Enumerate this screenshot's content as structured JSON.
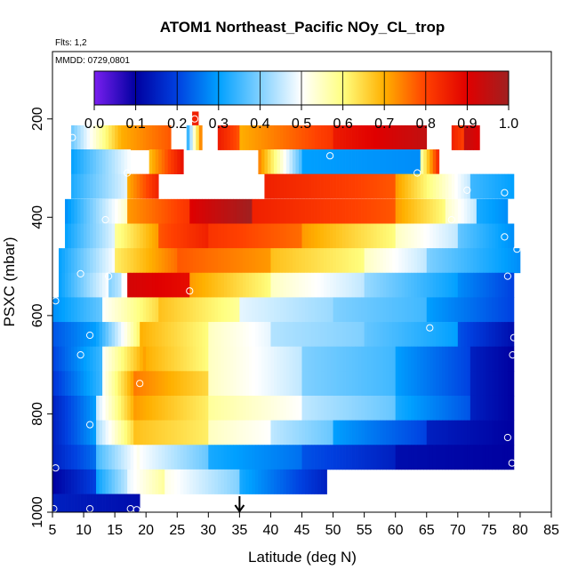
{
  "chart_data": {
    "type": "heatmap",
    "title": "ATOM1 Northeast_Pacific NOy_CL_trop",
    "annotations": [
      "Flts: 1,2",
      "MMDD: 0729,0801"
    ],
    "xlabel": "Latitude (deg N)",
    "ylabel": "PSXC (mbar)",
    "xlim": [
      5,
      85
    ],
    "ylim": [
      1000,
      100
    ],
    "x_ticks": [
      "5",
      "10",
      "15",
      "20",
      "25",
      "30",
      "35",
      "40",
      "45",
      "50",
      "55",
      "60",
      "65",
      "70",
      "75",
      "80",
      "85"
    ],
    "y_ticks": [
      "200",
      "400",
      "600",
      "800",
      "1000"
    ],
    "y_tick_values": [
      200,
      400,
      600,
      800,
      1000
    ],
    "colorbar": {
      "range": [
        0.0,
        1.0
      ],
      "ticks": [
        "0.0",
        "0.1",
        "0.2",
        "0.3",
        "0.4",
        "0.5",
        "0.6",
        "0.7",
        "0.8",
        "0.9",
        "1.0"
      ],
      "stops": [
        "#7a1ff0",
        "#0000a0",
        "#0040e0",
        "#00a0ff",
        "#80d0ff",
        "#ffffff",
        "#ffff80",
        "#ffb000",
        "#ff4000",
        "#e00000",
        "#a02020"
      ]
    },
    "marker": {
      "x": 35
    },
    "bands": [
      {
        "p": 210,
        "segments": [
          [
            27.4,
            28.4,
            0.85
          ]
        ]
      },
      {
        "p": 238,
        "segments": [
          [
            8,
            16,
            0.38,
            0.7
          ],
          [
            16,
            24,
            0.7,
            0.78
          ],
          [
            26.5,
            29,
            0.3,
            0.78
          ],
          [
            31.5,
            35,
            0.86,
            0.78
          ],
          [
            35,
            50,
            0.7,
            0.82
          ],
          [
            50,
            65,
            0.86,
            0.95
          ],
          [
            69,
            71,
            0.85,
            0.8
          ],
          [
            71,
            73.5,
            0.95,
            0.9
          ]
        ]
      },
      {
        "p": 287,
        "segments": [
          [
            8,
            17.5,
            0.3,
            0.5
          ],
          [
            20.5,
            26,
            0.68,
            0.88
          ],
          [
            38,
            45,
            0.75,
            0.35
          ],
          [
            45,
            64,
            0.3,
            0.28
          ],
          [
            64,
            67,
            0.55,
            0.85
          ]
        ]
      },
      {
        "p": 337,
        "segments": [
          [
            8,
            17,
            0.32,
            0.48
          ],
          [
            17,
            22,
            0.7,
            0.85
          ],
          [
            39,
            60,
            0.85,
            0.78
          ],
          [
            60,
            72,
            0.72,
            0.45
          ],
          [
            72,
            79,
            0.35,
            0.3
          ]
        ]
      },
      {
        "p": 388,
        "segments": [
          [
            7,
            17,
            0.28,
            0.55
          ],
          [
            17,
            27,
            0.72,
            0.82
          ],
          [
            27,
            37,
            0.9,
            1.0
          ],
          [
            37,
            60,
            0.85,
            0.78
          ],
          [
            60,
            68,
            0.72,
            0.6
          ],
          [
            68,
            73,
            0.55,
            0.45
          ],
          [
            73,
            78,
            0.32,
            0.28
          ]
        ]
      },
      {
        "p": 438,
        "segments": [
          [
            7,
            15,
            0.3,
            0.48
          ],
          [
            15,
            22,
            0.58,
            0.72
          ],
          [
            22,
            30,
            0.78,
            0.85
          ],
          [
            30,
            45,
            0.82,
            0.76
          ],
          [
            45,
            60,
            0.72,
            0.6
          ],
          [
            60,
            70,
            0.55,
            0.45
          ],
          [
            70,
            79,
            0.38,
            0.28
          ]
        ]
      },
      {
        "p": 488,
        "segments": [
          [
            6,
            15,
            0.3,
            0.5
          ],
          [
            15,
            25,
            0.62,
            0.76
          ],
          [
            25,
            40,
            0.78,
            0.72
          ],
          [
            40,
            55,
            0.68,
            0.6
          ],
          [
            55,
            65,
            0.55,
            0.45
          ],
          [
            65,
            80,
            0.4,
            0.28
          ]
        ]
      },
      {
        "p": 538,
        "segments": [
          [
            6,
            14,
            0.3,
            0.5
          ],
          [
            14,
            16,
            0.4,
            0.45
          ],
          [
            17,
            27,
            0.92,
            0.88
          ],
          [
            27,
            40,
            0.72,
            0.6
          ],
          [
            40,
            55,
            0.55,
            0.45
          ],
          [
            55,
            70,
            0.42,
            0.3
          ],
          [
            70,
            79,
            0.28,
            0.2
          ]
        ]
      },
      {
        "p": 588,
        "segments": [
          [
            5,
            13,
            0.28,
            0.38
          ],
          [
            13,
            22,
            0.5,
            0.65
          ],
          [
            22,
            35,
            0.68,
            0.58
          ],
          [
            35,
            50,
            0.48,
            0.42
          ],
          [
            50,
            65,
            0.4,
            0.35
          ],
          [
            65,
            79,
            0.3,
            0.2
          ]
        ]
      },
      {
        "p": 638,
        "segments": [
          [
            5,
            12,
            0.22,
            0.3
          ],
          [
            12,
            19,
            0.3,
            0.62
          ],
          [
            19,
            30,
            0.7,
            0.6
          ],
          [
            30,
            40,
            0.55,
            0.48
          ],
          [
            40,
            55,
            0.44,
            0.4
          ],
          [
            55,
            70,
            0.38,
            0.3
          ],
          [
            70,
            79,
            0.22,
            0.12
          ]
        ]
      },
      {
        "p": 688,
        "segments": [
          [
            5,
            13,
            0.2,
            0.35
          ],
          [
            13,
            20,
            0.5,
            0.72
          ],
          [
            20,
            30,
            0.7,
            0.6
          ],
          [
            30,
            45,
            0.55,
            0.45
          ],
          [
            45,
            60,
            0.4,
            0.35
          ],
          [
            60,
            72,
            0.3,
            0.2
          ],
          [
            72,
            79,
            0.15,
            0.1
          ]
        ]
      },
      {
        "p": 738,
        "segments": [
          [
            5,
            13,
            0.18,
            0.35
          ],
          [
            13,
            18,
            0.5,
            0.72
          ],
          [
            18,
            30,
            0.75,
            0.65
          ],
          [
            30,
            45,
            0.55,
            0.45
          ],
          [
            45,
            60,
            0.4,
            0.35
          ],
          [
            60,
            72,
            0.3,
            0.2
          ],
          [
            72,
            79,
            0.15,
            0.1
          ]
        ]
      },
      {
        "p": 788,
        "segments": [
          [
            5,
            12,
            0.15,
            0.3
          ],
          [
            12,
            18,
            0.45,
            0.7
          ],
          [
            18,
            30,
            0.72,
            0.62
          ],
          [
            30,
            45,
            0.58,
            0.5
          ],
          [
            45,
            60,
            0.45,
            0.38
          ],
          [
            60,
            72,
            0.32,
            0.22
          ],
          [
            72,
            79,
            0.15,
            0.1
          ]
        ]
      },
      {
        "p": 838,
        "segments": [
          [
            5,
            12,
            0.15,
            0.3
          ],
          [
            12,
            18,
            0.42,
            0.65
          ],
          [
            18,
            30,
            0.68,
            0.62
          ],
          [
            30,
            40,
            0.55,
            0.5
          ],
          [
            40,
            50,
            0.45,
            0.38
          ],
          [
            50,
            65,
            0.3,
            0.2
          ],
          [
            65,
            79,
            0.15,
            0.1
          ]
        ]
      },
      {
        "p": 888,
        "segments": [
          [
            5,
            12,
            0.15,
            0.25
          ],
          [
            12,
            19,
            0.35,
            0.52
          ],
          [
            19,
            30,
            0.5,
            0.38
          ],
          [
            30,
            45,
            0.32,
            0.25
          ],
          [
            45,
            60,
            0.22,
            0.15
          ],
          [
            60,
            79,
            0.12,
            0.1
          ]
        ]
      },
      {
        "p": 938,
        "segments": [
          [
            5,
            12,
            0.1,
            0.2
          ],
          [
            12,
            17,
            0.3,
            0.45
          ],
          [
            17,
            23,
            0.48,
            0.58
          ],
          [
            23,
            35,
            0.52,
            0.4
          ],
          [
            35,
            49,
            0.32,
            0.15
          ]
        ]
      },
      {
        "p": 988,
        "segments": [
          [
            5,
            19,
            0.15,
            0.12
          ]
        ]
      }
    ],
    "points": [
      [
        27.8,
        200
      ],
      [
        8.2,
        238
      ],
      [
        17,
        310
      ],
      [
        49.5,
        275
      ],
      [
        63.5,
        310
      ],
      [
        71.5,
        345
      ],
      [
        77.5,
        350
      ],
      [
        13.5,
        405
      ],
      [
        69,
        405
      ],
      [
        77.5,
        440
      ],
      [
        79.5,
        465
      ],
      [
        9.5,
        515
      ],
      [
        14,
        520
      ],
      [
        27,
        550
      ],
      [
        78,
        520
      ],
      [
        5.5,
        570
      ],
      [
        11,
        640
      ],
      [
        65.5,
        625
      ],
      [
        79,
        645
      ],
      [
        9.5,
        680
      ],
      [
        78.8,
        680
      ],
      [
        19,
        738
      ],
      [
        11,
        822
      ],
      [
        78,
        848
      ],
      [
        5.5,
        910
      ],
      [
        78.7,
        900
      ],
      [
        5.2,
        993
      ],
      [
        11,
        993
      ],
      [
        17.5,
        993
      ],
      [
        18.5,
        995
      ]
    ]
  }
}
